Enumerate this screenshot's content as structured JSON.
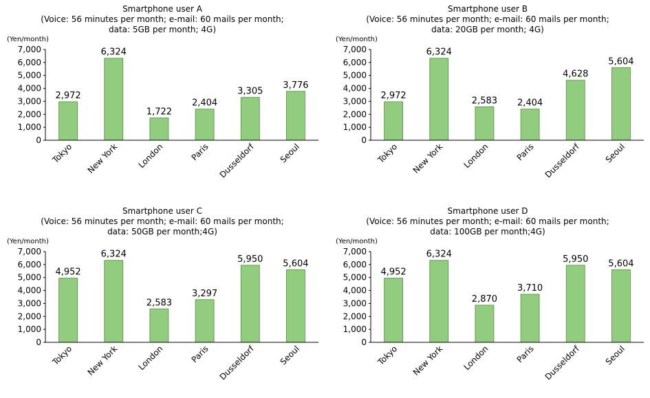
{
  "chart_data": [
    {
      "type": "bar",
      "title": "Smartphone user A",
      "subtitle": [
        "(Voice: 56 minutes per month; e-mail: 60 mails per month;",
        "data: 5GB per month; 4G)"
      ],
      "ylabel": "(Yen/month)",
      "categories": [
        "Tokyo",
        "New York",
        "London",
        "Paris",
        "Dusseldorf",
        "Seoul"
      ],
      "values": [
        2972,
        6324,
        1722,
        2404,
        3305,
        3776
      ],
      "value_labels": [
        "2,972",
        "6,324",
        "1,722",
        "2,404",
        "3,305",
        "3,776"
      ],
      "yticks": [
        "0",
        "1,000",
        "2,000",
        "3,000",
        "4,000",
        "5,000",
        "6,000",
        "7,000"
      ],
      "ylim": [
        0,
        7000
      ],
      "bar_color": "#92cc7e",
      "bar_edge_color": "#5a8a45",
      "grid": false
    },
    {
      "type": "bar",
      "title": "Smartphone user B",
      "subtitle": [
        "(Voice: 56 minutes per month; e-mail: 60 mails per month;",
        "data: 20GB per month; 4G)"
      ],
      "ylabel": "(Yen/month)",
      "categories": [
        "Tokyo",
        "New York",
        "London",
        "Paris",
        "Dusseldorf",
        "Seoul"
      ],
      "values": [
        2972,
        6324,
        2583,
        2404,
        4628,
        5604
      ],
      "value_labels": [
        "2,972",
        "6,324",
        "2,583",
        "2,404",
        "4,628",
        "5,604"
      ],
      "yticks": [
        "0",
        "1,000",
        "2,000",
        "3,000",
        "4,000",
        "5,000",
        "6,000",
        "7,000"
      ],
      "ylim": [
        0,
        7000
      ],
      "bar_color": "#92cc7e",
      "bar_edge_color": "#5a8a45",
      "grid": false
    },
    {
      "type": "bar",
      "title": "Smartphone user C",
      "subtitle": [
        "(Voice: 56 minutes per month; e-mail: 60 mails per month;",
        "data: 50GB per month;4G)"
      ],
      "ylabel": "(Yen/month)",
      "categories": [
        "Tokyo",
        "New York",
        "London",
        "Paris",
        "Dusseldorf",
        "Seoul"
      ],
      "values": [
        4952,
        6324,
        2583,
        3297,
        5950,
        5604
      ],
      "value_labels": [
        "4,952",
        "6,324",
        "2,583",
        "3,297",
        "5,950",
        "5,604"
      ],
      "yticks": [
        "0",
        "1,000",
        "2,000",
        "3,000",
        "4,000",
        "5,000",
        "6,000",
        "7,000"
      ],
      "ylim": [
        0,
        7000
      ],
      "bar_color": "#92cc7e",
      "bar_edge_color": "#5a8a45",
      "grid": false
    },
    {
      "type": "bar",
      "title": "Smartphone user D",
      "subtitle": [
        "(Voice: 56 minutes per month; e-mail: 60 mails per month;",
        "data: 100GB per month;4G)"
      ],
      "ylabel": "(Yen/month)",
      "categories": [
        "Tokyo",
        "New York",
        "London",
        "Paris",
        "Dusseldorf",
        "Seoul"
      ],
      "values": [
        4952,
        6324,
        2870,
        3710,
        5950,
        5604
      ],
      "value_labels": [
        "4,952",
        "6,324",
        "2,870",
        "3,710",
        "5,950",
        "5,604"
      ],
      "yticks": [
        "0",
        "1,000",
        "2,000",
        "3,000",
        "4,000",
        "5,000",
        "6,000",
        "7,000"
      ],
      "ylim": [
        0,
        7000
      ],
      "bar_color": "#92cc7e",
      "bar_edge_color": "#5a8a45",
      "grid": false
    }
  ]
}
